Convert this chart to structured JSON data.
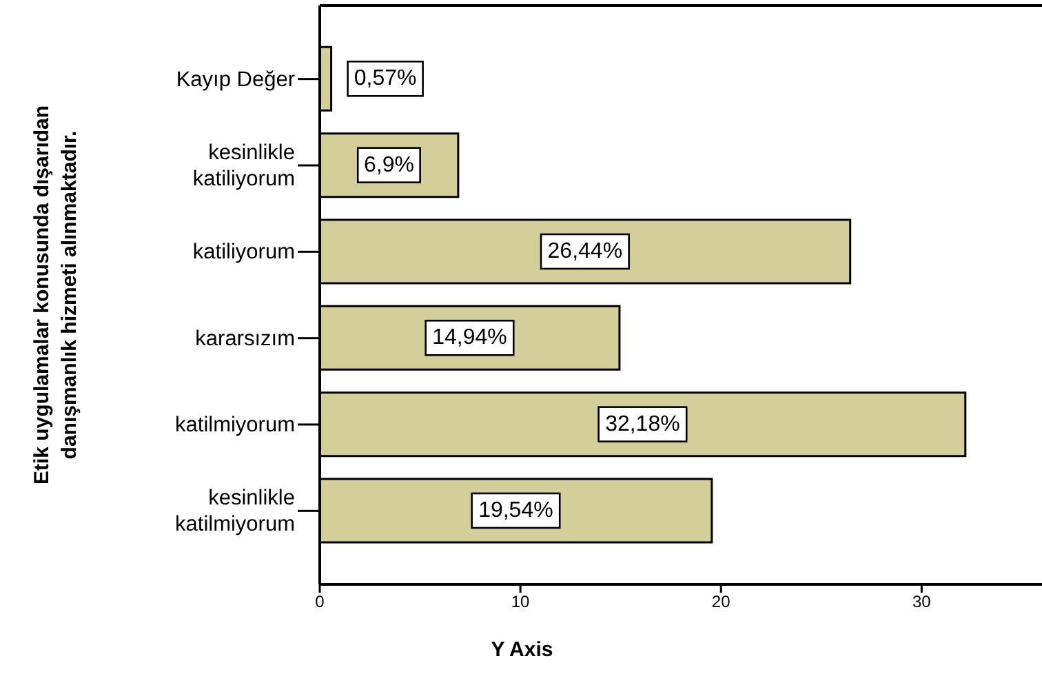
{
  "chart_data": {
    "type": "bar",
    "orientation": "horizontal",
    "ylabel": "Etik uygulamalar konusunda dışarıdan\ndanışmanlık hizmeti alınmaktadır.",
    "xlabel": "Y Axis",
    "categories": [
      "Kayıp Değer",
      "kesinlikle katiliyorum",
      "katiliyorum",
      "kararsızım",
      "katilmiyorum",
      "kesinlikle katilmiyorum"
    ],
    "values": [
      0.57,
      6.9,
      26.44,
      14.94,
      32.18,
      19.54
    ],
    "value_labels": [
      "0,57%",
      "6,9%",
      "26,44%",
      "14,94%",
      "32,18%",
      "19,54%"
    ],
    "color": "#d3ce9a",
    "xlim": [
      0,
      36
    ],
    "xticks": [
      0,
      10,
      20,
      30
    ],
    "grid": false
  }
}
